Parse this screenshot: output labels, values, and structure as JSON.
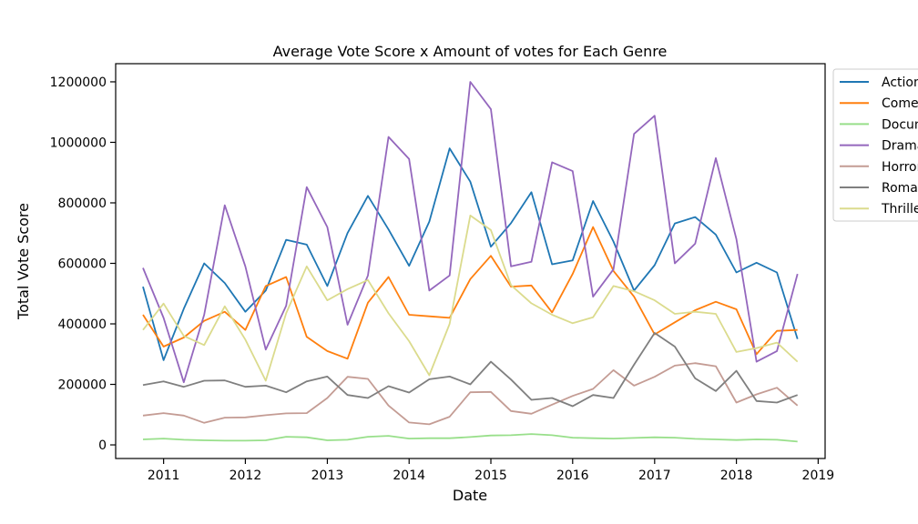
{
  "chart_data": {
    "type": "line",
    "title": "Average Vote Score x Amount of votes for Each Genre",
    "xlabel": "Date",
    "ylabel": "Total Vote Score",
    "xlim": [
      "2010-06-01",
      "2019-02-01"
    ],
    "ylim": [
      -45000,
      1260000
    ],
    "x_ticks": [
      "2011",
      "2012",
      "2013",
      "2014",
      "2015",
      "2016",
      "2017",
      "2018",
      "2019"
    ],
    "y_ticks": [
      0,
      200000,
      400000,
      600000,
      800000,
      1000000,
      1200000
    ],
    "y_tick_labels": [
      "0",
      "200000",
      "400000",
      "600000",
      "800000",
      "1000000",
      "1200000"
    ],
    "grid": false,
    "legend_position": "outside-right",
    "x": [
      "2010-10",
      "2011-01",
      "2011-04",
      "2011-07",
      "2011-10",
      "2012-01",
      "2012-04",
      "2012-07",
      "2012-10",
      "2013-01",
      "2013-04",
      "2013-07",
      "2013-10",
      "2014-01",
      "2014-04",
      "2014-07",
      "2014-10",
      "2015-01",
      "2015-04",
      "2015-07",
      "2015-10",
      "2016-01",
      "2016-04",
      "2016-07",
      "2016-10",
      "2017-01",
      "2017-04",
      "2017-07",
      "2017-10",
      "2018-01",
      "2018-04",
      "2018-07",
      "2018-10"
    ],
    "series": [
      {
        "name": "Action",
        "color": "#1f77b4",
        "values": [
          523000,
          280000,
          450000,
          600000,
          535000,
          440000,
          510000,
          678000,
          662000,
          525000,
          700000,
          823000,
          712000,
          592000,
          738000,
          980000,
          870000,
          655000,
          733000,
          835000,
          597000,
          610000,
          806000,
          672000,
          510000,
          594000,
          732000,
          753000,
          695000,
          570000,
          602000,
          570000,
          350000
        ]
      },
      {
        "name": "Comedy",
        "color": "#ff7f0e",
        "values": [
          430000,
          325000,
          355000,
          410000,
          440000,
          380000,
          525000,
          555000,
          357000,
          310000,
          285000,
          470000,
          555000,
          430000,
          425000,
          420000,
          548000,
          625000,
          523000,
          527000,
          438000,
          565000,
          720000,
          575000,
          490000,
          365000,
          405000,
          445000,
          473000,
          448000,
          300000,
          377000,
          380000
        ]
      },
      {
        "name": "Documentary",
        "color": "#98df8a",
        "values": [
          18000,
          21000,
          17000,
          15000,
          14000,
          14000,
          15000,
          27000,
          25000,
          15000,
          17000,
          27000,
          30000,
          21000,
          22000,
          22000,
          26000,
          31000,
          32000,
          36000,
          32000,
          24000,
          22000,
          21000,
          23000,
          25000,
          24000,
          20000,
          18000,
          16000,
          18000,
          17000,
          11000
        ]
      },
      {
        "name": "Drama",
        "color": "#9467bd",
        "values": [
          585000,
          420000,
          207000,
          430000,
          792000,
          590000,
          315000,
          460000,
          852000,
          720000,
          397000,
          560000,
          1018000,
          945000,
          510000,
          560000,
          1200000,
          1110000,
          590000,
          605000,
          934000,
          905000,
          490000,
          580000,
          1028000,
          1088000,
          600000,
          665000,
          948000,
          680000,
          275000,
          310000,
          565000
        ]
      },
      {
        "name": "Horror",
        "color": "#c49c94",
        "values": [
          97000,
          105000,
          97000,
          73000,
          90000,
          91000,
          98000,
          104000,
          105000,
          155000,
          225000,
          218000,
          130000,
          74000,
          68000,
          93000,
          174000,
          175000,
          112000,
          103000,
          133000,
          162000,
          185000,
          247000,
          196000,
          225000,
          262000,
          270000,
          260000,
          140000,
          167000,
          189000,
          130000
        ]
      },
      {
        "name": "Romance",
        "color": "#7f7f7f",
        "values": [
          198000,
          210000,
          192000,
          212000,
          213000,
          192000,
          196000,
          174000,
          210000,
          226000,
          165000,
          155000,
          194000,
          173000,
          217000,
          226000,
          200000,
          275000,
          216000,
          149000,
          155000,
          128000,
          165000,
          155000,
          265000,
          370000,
          325000,
          220000,
          178000,
          245000,
          145000,
          140000,
          165000
        ]
      },
      {
        "name": "Thriller",
        "color": "#dbdb8d",
        "values": [
          380000,
          467000,
          360000,
          330000,
          458000,
          348000,
          212000,
          435000,
          590000,
          478000,
          515000,
          545000,
          435000,
          343000,
          230000,
          400000,
          758000,
          710000,
          528000,
          468000,
          430000,
          402000,
          422000,
          525000,
          508000,
          478000,
          433000,
          440000,
          433000,
          307000,
          320000,
          338000,
          275000
        ]
      }
    ]
  }
}
